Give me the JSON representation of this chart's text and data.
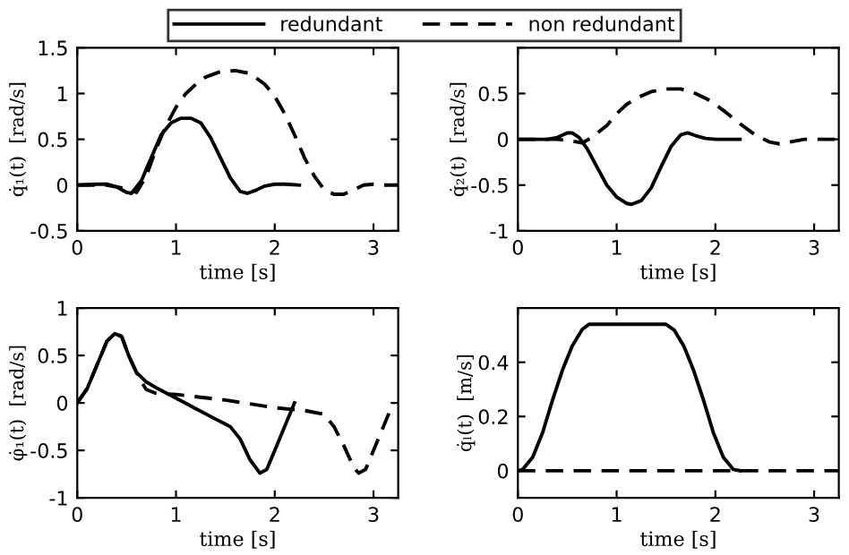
{
  "chart_data": [
    {
      "type": "line",
      "ylabel": "q̇₁(t)  [rad/s]",
      "xlabel": "time [s]",
      "xlim": [
        0,
        3.25
      ],
      "ylim": [
        -0.5,
        1.5
      ],
      "xticks": [
        0,
        1,
        2,
        3
      ],
      "yticks": [
        -0.5,
        0,
        0.5,
        1,
        1.5
      ],
      "legend": "top",
      "grid": false,
      "series": [
        {
          "name": "redundant",
          "color": "#000000",
          "line_style": "solid",
          "x": [
            0,
            0.2,
            0.3,
            0.4,
            0.5,
            0.55,
            0.65,
            0.75,
            0.85,
            0.95,
            1.05,
            1.15,
            1.25,
            1.35,
            1.45,
            1.55,
            1.65,
            1.72,
            1.8,
            1.9,
            2.0,
            2.1,
            2.25
          ],
          "values": [
            0,
            0.01,
            0.01,
            -0.02,
            -0.08,
            -0.09,
            0.05,
            0.3,
            0.55,
            0.68,
            0.73,
            0.73,
            0.68,
            0.52,
            0.3,
            0.08,
            -0.07,
            -0.09,
            -0.06,
            -0.01,
            0.01,
            0.01,
            0
          ]
        },
        {
          "name": "non redundant",
          "color": "#000000",
          "line_style": "dashed",
          "x": [
            0,
            0.3,
            0.45,
            0.6,
            0.7,
            0.8,
            0.9,
            1.0,
            1.1,
            1.2,
            1.3,
            1.45,
            1.6,
            1.75,
            1.9,
            2.0,
            2.1,
            2.2,
            2.3,
            2.4,
            2.5,
            2.6,
            2.7,
            2.8,
            2.9,
            3.0,
            3.1,
            3.25
          ],
          "values": [
            0,
            0,
            -0.03,
            -0.08,
            0.1,
            0.4,
            0.65,
            0.85,
            1.0,
            1.1,
            1.18,
            1.24,
            1.25,
            1.22,
            1.1,
            0.97,
            0.78,
            0.55,
            0.3,
            0.1,
            -0.05,
            -0.1,
            -0.1,
            -0.05,
            0,
            0.01,
            0,
            0
          ]
        }
      ]
    },
    {
      "type": "line",
      "ylabel": "q̇₂(t)  [rad/s]",
      "xlabel": "time [s]",
      "xlim": [
        0,
        3.25
      ],
      "ylim": [
        -1,
        1
      ],
      "xticks": [
        0,
        1,
        2,
        3
      ],
      "yticks": [
        -1,
        -0.5,
        0,
        0.5,
        {
          "value": 1,
          "label": null
        }
      ],
      "legend": "top",
      "grid": false,
      "series": [
        {
          "name": "redundant",
          "color": "#000000",
          "line_style": "solid",
          "x": [
            0,
            0.3,
            0.4,
            0.5,
            0.55,
            0.62,
            0.7,
            0.8,
            0.9,
            1.0,
            1.1,
            1.15,
            1.25,
            1.35,
            1.45,
            1.55,
            1.65,
            1.72,
            1.8,
            1.9,
            2.0,
            2.25
          ],
          "values": [
            0,
            0,
            0.02,
            0.07,
            0.07,
            0.02,
            -0.1,
            -0.3,
            -0.5,
            -0.63,
            -0.7,
            -0.71,
            -0.67,
            -0.53,
            -0.3,
            -0.08,
            0.05,
            0.07,
            0.04,
            0.01,
            0,
            0
          ]
        },
        {
          "name": "non redundant",
          "color": "#000000",
          "line_style": "dashed",
          "x": [
            0,
            0.4,
            0.55,
            0.65,
            0.75,
            0.9,
            1.0,
            1.1,
            1.2,
            1.35,
            1.5,
            1.65,
            1.8,
            1.95,
            2.1,
            2.25,
            2.4,
            2.55,
            2.65,
            2.75,
            2.9,
            3.25
          ],
          "values": [
            0,
            0,
            -0.02,
            -0.04,
            0.02,
            0.15,
            0.28,
            0.38,
            0.45,
            0.52,
            0.55,
            0.55,
            0.5,
            0.42,
            0.3,
            0.17,
            0.05,
            -0.03,
            -0.05,
            -0.03,
            0,
            0
          ]
        }
      ]
    },
    {
      "type": "line",
      "ylabel": "φ̇₁(t)  [rad/s]",
      "xlabel": "time [s]",
      "xlim": [
        0,
        3.25
      ],
      "ylim": [
        -1,
        1
      ],
      "xticks": [
        0,
        1,
        2,
        3
      ],
      "yticks": [
        -1,
        -0.5,
        0,
        0.5,
        1
      ],
      "legend": "top",
      "grid": false,
      "series": [
        {
          "name": "redundant",
          "color": "#000000",
          "line_style": "solid",
          "x": [
            0,
            0.1,
            0.2,
            0.3,
            0.38,
            0.45,
            0.52,
            0.6,
            0.7,
            0.8,
            1.0,
            1.2,
            1.4,
            1.55,
            1.65,
            1.75,
            1.85,
            1.92,
            2.0,
            2.1,
            2.2
          ],
          "values": [
            0,
            0.15,
            0.4,
            0.65,
            0.73,
            0.7,
            0.5,
            0.32,
            0.22,
            0.16,
            0.05,
            -0.06,
            -0.17,
            -0.25,
            -0.38,
            -0.6,
            -0.74,
            -0.7,
            -0.5,
            -0.25,
            0
          ]
        },
        {
          "name": "non redundant",
          "color": "#000000",
          "line_style": "dashed",
          "x": [
            0,
            0.1,
            0.2,
            0.3,
            0.38,
            0.45,
            0.52,
            0.6,
            0.65,
            0.7,
            0.8,
            1.0,
            1.5,
            2.0,
            2.3,
            2.5,
            2.6,
            2.7,
            2.8,
            2.85,
            2.92,
            3.0,
            3.1,
            3.2
          ],
          "values": [
            0,
            0.15,
            0.4,
            0.65,
            0.73,
            0.7,
            0.5,
            0.32,
            0.22,
            0.14,
            0.1,
            0.09,
            0.03,
            -0.05,
            -0.08,
            -0.12,
            -0.25,
            -0.45,
            -0.68,
            -0.74,
            -0.7,
            -0.5,
            -0.25,
            0
          ]
        }
      ]
    },
    {
      "type": "line",
      "ylabel": "q̇ₗ(t)  [m/s]",
      "xlabel": "time [s]",
      "xlim": [
        0,
        3.25
      ],
      "ylim": [
        -0.1,
        0.6
      ],
      "xticks": [
        0,
        1,
        2,
        3
      ],
      "yticks": [
        0,
        0.2,
        0.4
      ],
      "legend": "top",
      "grid": false,
      "series": [
        {
          "name": "redundant",
          "color": "#000000",
          "line_style": "solid",
          "x": [
            0,
            0.05,
            0.15,
            0.25,
            0.35,
            0.45,
            0.55,
            0.65,
            0.72,
            1.5,
            1.58,
            1.68,
            1.78,
            1.88,
            1.98,
            2.08,
            2.18,
            2.25
          ],
          "values": [
            0,
            0.005,
            0.05,
            0.14,
            0.26,
            0.37,
            0.46,
            0.52,
            0.54,
            0.54,
            0.52,
            0.46,
            0.37,
            0.26,
            0.14,
            0.05,
            0.005,
            0
          ]
        },
        {
          "name": "non redundant",
          "color": "#000000",
          "line_style": "dashed",
          "x": [
            0,
            3.25
          ],
          "values": [
            0,
            0
          ]
        }
      ]
    }
  ]
}
